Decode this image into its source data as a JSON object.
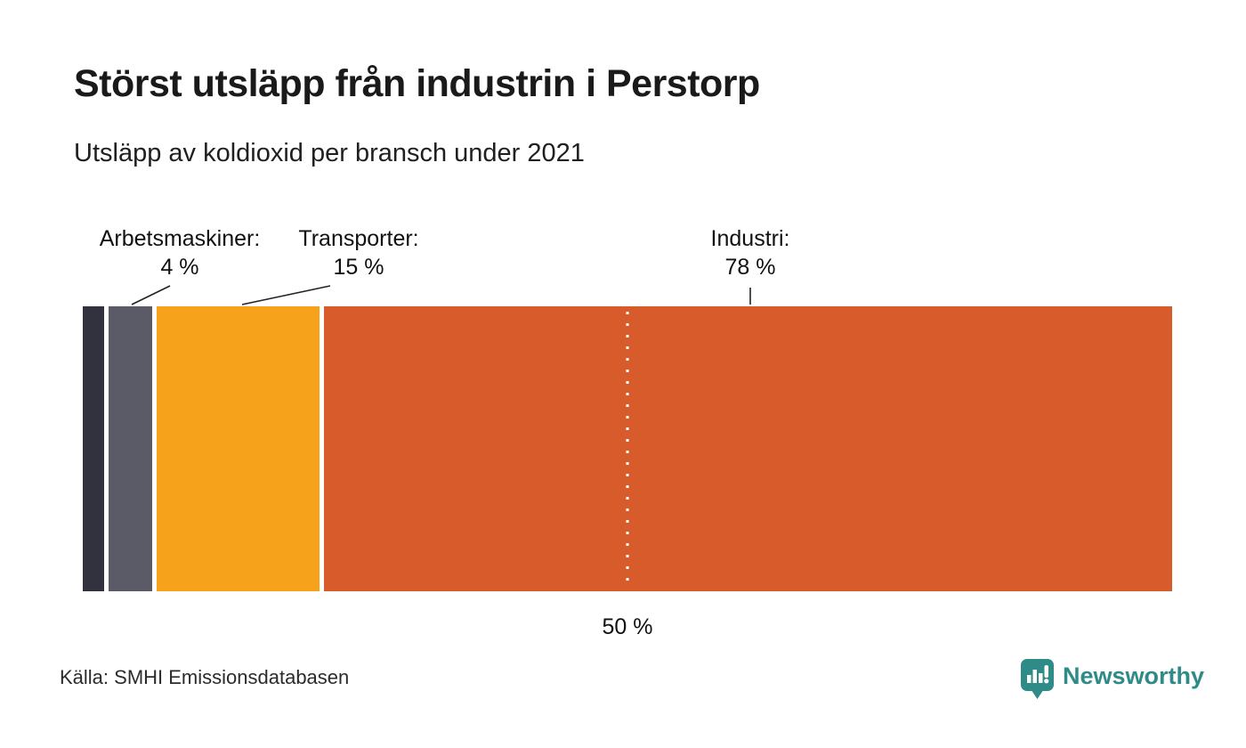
{
  "header": {
    "title": "Störst utsläpp från industrin i Perstorp",
    "subtitle": "Utsläpp av koldioxid per bransch under 2021"
  },
  "chart_data": {
    "type": "bar",
    "variant": "horizontal-stacked-percentage",
    "title": "Störst utsläpp från industrin i Perstorp",
    "subtitle": "Utsläpp av koldioxid per bransch under 2021",
    "unit": "%",
    "xlim": [
      0,
      100
    ],
    "grid": false,
    "legend": "none",
    "segments": [
      {
        "name": "",
        "value": 2,
        "color": "#32323e",
        "label": null,
        "value_label": null
      },
      {
        "name": "Arbetsmaskiner",
        "value": 4,
        "color": "#5b5b67",
        "label": "Arbetsmaskiner:",
        "value_label": "4 %"
      },
      {
        "name": "Transporter",
        "value": 15,
        "color": "#f7a21b",
        "label": "Transporter:",
        "value_label": "15 %"
      },
      {
        "name": "Industri",
        "value": 78,
        "color": "#d85c2b",
        "label": "Industri:",
        "value_label": "78 %"
      }
    ],
    "axis_marker": {
      "position": 50,
      "label": "50 %",
      "style": "white-dotted-line"
    }
  },
  "footer": {
    "source": "Källa: SMHI Emissionsdatabasen",
    "brand": "Newsworthy",
    "brand_color": "#2f8b87"
  }
}
